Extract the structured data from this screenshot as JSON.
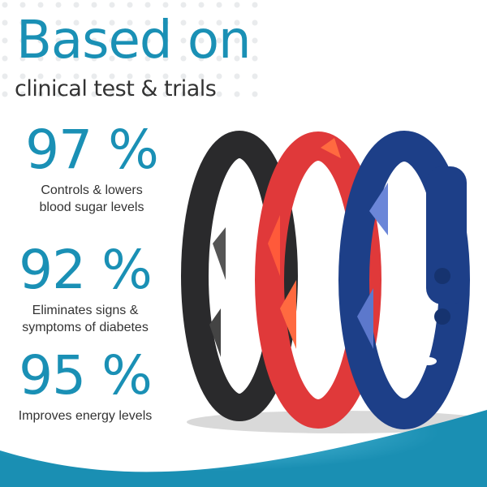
{
  "header": {
    "title": "Based on",
    "subtitle": "clinical test & trials"
  },
  "stats": [
    {
      "value": "97 %",
      "desc_lines": [
        "Controls & lowers",
        "blood sugar levels"
      ]
    },
    {
      "value": "92 %",
      "desc_lines": [
        "Eliminates signs &",
        "symptoms of diabetes"
      ]
    },
    {
      "value": "95 %",
      "desc_lines": [
        "Improves energy levels"
      ]
    }
  ],
  "colors": {
    "accent": "#1a90b5",
    "band_black": "#2a2a2c",
    "band_red": "#e0393a",
    "band_blue": "#1d3f88"
  }
}
